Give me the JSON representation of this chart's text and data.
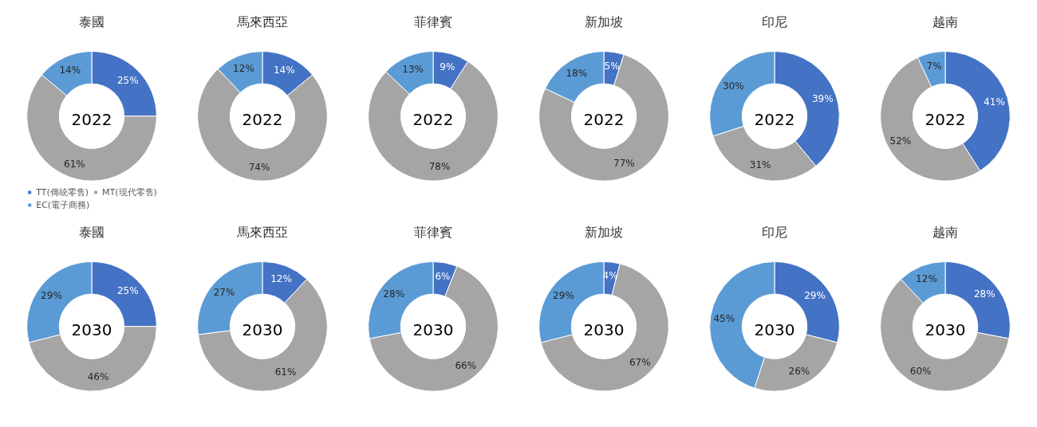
{
  "chart_data": [
    {
      "type": "donut",
      "title": "泰國",
      "subtitle": "2022",
      "categories": [
        "TT(傳統零售)",
        "MT(現代零售)",
        "EC(電子商務)"
      ],
      "values": [
        25,
        61,
        14
      ],
      "value_labels": [
        "25%",
        "61%",
        "14%"
      ],
      "colors": [
        "#4472c4",
        "#a5a5a5",
        "#5b9bd5"
      ],
      "legend": "bottom"
    },
    {
      "type": "donut",
      "title": "馬來西亞",
      "subtitle": "2022",
      "categories": [
        null,
        null,
        null
      ],
      "values": [
        14,
        74,
        12
      ],
      "value_labels": [
        "14%",
        "74%",
        "12%"
      ],
      "colors": [
        "#4472c4",
        "#a5a5a5",
        "#5b9bd5"
      ]
    },
    {
      "type": "donut",
      "title": "菲律賓",
      "subtitle": "2022",
      "categories": [
        null,
        null,
        null
      ],
      "values": [
        9,
        78,
        13
      ],
      "value_labels": [
        "9%",
        "78%",
        "13%"
      ],
      "colors": [
        "#4472c4",
        "#a5a5a5",
        "#5b9bd5"
      ]
    },
    {
      "type": "donut",
      "title": "新加坡",
      "subtitle": "2022",
      "categories": [
        null,
        null,
        null
      ],
      "values": [
        5,
        77,
        18
      ],
      "value_labels": [
        "5%",
        "77%",
        "18%"
      ],
      "colors": [
        "#4472c4",
        "#a5a5a5",
        "#5b9bd5"
      ]
    },
    {
      "type": "donut",
      "title": "印尼",
      "subtitle": "2022",
      "categories": [
        null,
        null,
        null
      ],
      "values": [
        39,
        31,
        30
      ],
      "value_labels": [
        "39%",
        "31%",
        "30%"
      ],
      "colors": [
        "#4472c4",
        "#a5a5a5",
        "#5b9bd5"
      ]
    },
    {
      "type": "donut",
      "title": "越南",
      "subtitle": "2022",
      "categories": [
        null,
        null,
        null
      ],
      "values": [
        41,
        52,
        7
      ],
      "value_labels": [
        "41%",
        "52%",
        "7%"
      ],
      "colors": [
        "#4472c4",
        "#a5a5a5",
        "#5b9bd5"
      ]
    },
    {
      "type": "donut",
      "title": "泰國",
      "subtitle": "2030",
      "categories": [
        null,
        null,
        null
      ],
      "values": [
        25,
        46,
        29
      ],
      "value_labels": [
        "25%",
        "46%",
        "29%"
      ],
      "colors": [
        "#4472c4",
        "#a5a5a5",
        "#5b9bd5"
      ]
    },
    {
      "type": "donut",
      "title": "馬來西亞",
      "subtitle": "2030",
      "categories": [
        null,
        null,
        null
      ],
      "values": [
        12,
        61,
        27
      ],
      "value_labels": [
        "12%",
        "61%",
        "27%"
      ],
      "colors": [
        "#4472c4",
        "#a5a5a5",
        "#5b9bd5"
      ]
    },
    {
      "type": "donut",
      "title": "菲律賓",
      "subtitle": "2030",
      "categories": [
        null,
        null,
        null
      ],
      "values": [
        6,
        66,
        28
      ],
      "value_labels": [
        "6%",
        "66%",
        "28%"
      ],
      "colors": [
        "#4472c4",
        "#a5a5a5",
        "#5b9bd5"
      ]
    },
    {
      "type": "donut",
      "title": "新加坡",
      "subtitle": "2030",
      "categories": [
        null,
        null,
        null
      ],
      "values": [
        4,
        67,
        29
      ],
      "value_labels": [
        "4%",
        "67%",
        "29%"
      ],
      "colors": [
        "#4472c4",
        "#a5a5a5",
        "#5b9bd5"
      ]
    },
    {
      "type": "donut",
      "title": "印尼",
      "subtitle": "2030",
      "categories": [
        null,
        null,
        null
      ],
      "values": [
        29,
        26,
        45
      ],
      "value_labels": [
        "29%",
        "26%",
        "45%"
      ],
      "colors": [
        "#4472c4",
        "#a5a5a5",
        "#5b9bd5"
      ]
    },
    {
      "type": "donut",
      "title": "越南",
      "subtitle": "2030",
      "categories": [
        null,
        null,
        null
      ],
      "values": [
        28,
        60,
        12
      ],
      "value_labels": [
        "28%",
        "60%",
        "12%"
      ],
      "colors": [
        "#4472c4",
        "#a5a5a5",
        "#5b9bd5"
      ]
    }
  ]
}
